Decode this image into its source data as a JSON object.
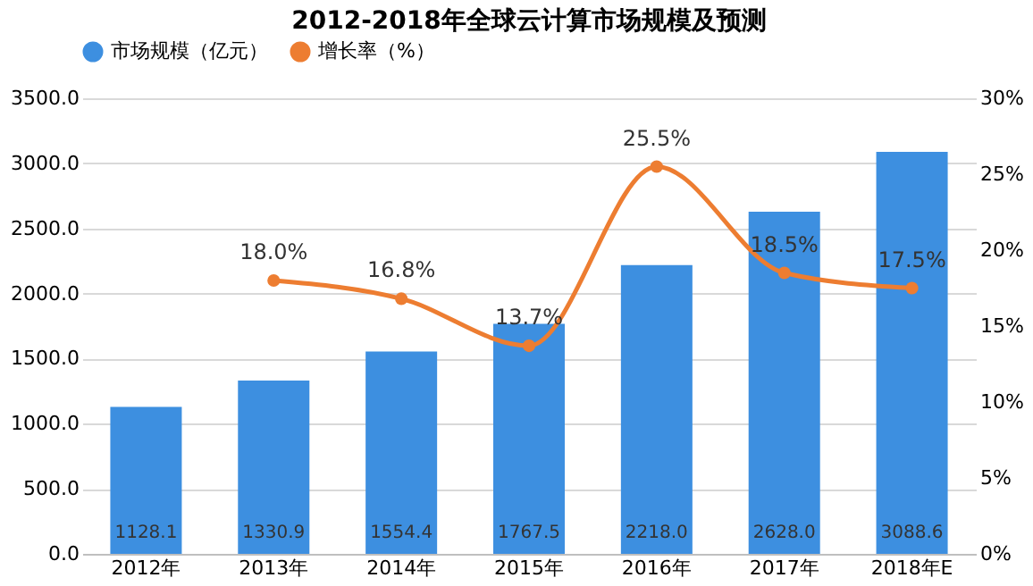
{
  "chart_data": {
    "type": "bar",
    "title": "2012-2018年全球云计算市场规模及预测",
    "categories": [
      "2012年",
      "2013年",
      "2014年",
      "2015年",
      "2016年",
      "2017年",
      "2018年E"
    ],
    "series": [
      {
        "name": "市场规模（亿元）",
        "color": "#3d8fe0",
        "values": [
          1128.1,
          1330.9,
          1554.4,
          1767.5,
          2218.0,
          2628.0,
          3088.6
        ],
        "value_labels": [
          "1128.1",
          "1330.9",
          "1554.4",
          "1767.5",
          "2218.0",
          "2628.0",
          "3088.6"
        ]
      },
      {
        "name": "增长率（%）",
        "type": "line",
        "axis": "y2",
        "color": "#ed7d31",
        "values": [
          null,
          18.0,
          16.8,
          13.7,
          25.5,
          18.5,
          17.5
        ],
        "value_labels": [
          null,
          "18.0%",
          "16.8%",
          "13.7%",
          "25.5%",
          "18.5%",
          "17.5%"
        ]
      }
    ],
    "ylim": [
      0,
      3500
    ],
    "yticks": [
      {
        "value": 0,
        "label": "0.0"
      },
      {
        "value": 500,
        "label": "500.0"
      },
      {
        "value": 1000,
        "label": "1000.0"
      },
      {
        "value": 1500,
        "label": "1500.0"
      },
      {
        "value": 2000,
        "label": "2000.0"
      },
      {
        "value": 2500,
        "label": "2500.0"
      },
      {
        "value": 3000,
        "label": "3000.0"
      },
      {
        "value": 3500,
        "label": "3500.0"
      }
    ],
    "y2lim": [
      0,
      30
    ],
    "y2ticks": [
      {
        "value": 0,
        "label": "0%"
      },
      {
        "value": 5,
        "label": "5%"
      },
      {
        "value": 10,
        "label": "10%"
      },
      {
        "value": 15,
        "label": "15%"
      },
      {
        "value": 20,
        "label": "20%"
      },
      {
        "value": 25,
        "label": "25%"
      },
      {
        "value": 30,
        "label": "30%"
      }
    ],
    "grid": "y",
    "legend": "top",
    "marker": "circle",
    "line_style": "solid"
  }
}
